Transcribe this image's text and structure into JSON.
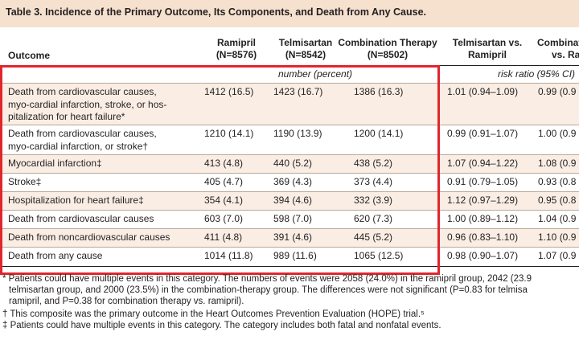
{
  "table": {
    "title": "Table 3. Incidence of the Primary Outcome, Its Components, and Death from Any Cause.",
    "headers": {
      "outcome": "Outcome",
      "ramipril": "Ramipril",
      "ramipril_n": "(N=8576)",
      "telmisartan": "Telmisartan",
      "telmisartan_n": "(N=8542)",
      "combination": "Combination Therapy",
      "combination_n": "(N=8502)",
      "telmi_vs_rami": "Telmisartan vs.",
      "telmi_vs_rami_2": "Ramipril",
      "combo_vs": "Combinatio",
      "combo_vs_2": "vs. Ra"
    },
    "subheaders": {
      "counts": "number (percent)",
      "ratio": "risk ratio (95% CI)"
    },
    "rows": [
      {
        "outcome": "Death from cardiovascular causes, myo-cardial infarction, stroke, or hos-pitalization for heart failure*",
        "ramipril": "1412 (16.5)",
        "telmisartan": "1423 (16.7)",
        "combination": "1386 (16.3)",
        "telmi_vs_rami": "1.01 (0.94–1.09)",
        "combo_vs": "0.99 (0.9"
      },
      {
        "outcome": "Death from cardiovascular causes, myo-cardial infarction, or stroke†",
        "ramipril": "1210 (14.1)",
        "telmisartan": "1190 (13.9)",
        "combination": "1200 (14.1)",
        "telmi_vs_rami": "0.99 (0.91–1.07)",
        "combo_vs": "1.00 (0.9"
      },
      {
        "outcome": "Myocardial infarction‡",
        "ramipril": "413 (4.8)",
        "telmisartan": "440 (5.2)",
        "combination": "438 (5.2)",
        "telmi_vs_rami": "1.07 (0.94–1.22)",
        "combo_vs": "1.08 (0.9"
      },
      {
        "outcome": "Stroke‡",
        "ramipril": "405 (4.7)",
        "telmisartan": "369 (4.3)",
        "combination": "373 (4.4)",
        "telmi_vs_rami": "0.91 (0.79–1.05)",
        "combo_vs": "0.93 (0.8"
      },
      {
        "outcome": "Hospitalization for heart failure‡",
        "ramipril": "354 (4.1)",
        "telmisartan": "394 (4.6)",
        "combination": "332 (3.9)",
        "telmi_vs_rami": "1.12 (0.97–1.29)",
        "combo_vs": "0.95 (0.8"
      },
      {
        "outcome": "Death from cardiovascular causes",
        "ramipril": "603 (7.0)",
        "telmisartan": "598 (7.0)",
        "combination": "620 (7.3)",
        "telmi_vs_rami": "1.00 (0.89–1.12)",
        "combo_vs": "1.04 (0.9"
      },
      {
        "outcome": "Death from noncardiovascular causes",
        "ramipril": "411 (4.8)",
        "telmisartan": "391 (4.6)",
        "combination": "445 (5.2)",
        "telmi_vs_rami": "0.96 (0.83–1.10)",
        "combo_vs": "1.10 (0.9"
      },
      {
        "outcome": "Death from any cause",
        "ramipril": "1014 (11.8)",
        "telmisartan": "989 (11.6)",
        "combination": "1065 (12.5)",
        "telmi_vs_rami": "0.98 (0.90–1.07)",
        "combo_vs": "1.07 (0.9"
      }
    ]
  },
  "footnotes": [
    "* Patients could have multiple events in this category. The numbers of events were 2058 (24.0%) in the ramipril group, 2042 (23.9",
    "telmisartan group, and 2000 (23.5%) in the combination-therapy group. The differences were not significant (P=0.83 for telmisa",
    "ramipril, and P=0.38 for combination therapy vs. ramipril).",
    "† This composite was the primary outcome in the Heart Outcomes Prevention Evaluation (HOPE) trial.⁵",
    "‡ Patients could have multiple events in this category. The category includes both fatal and nonfatal events."
  ],
  "colors": {
    "title_background": "#f6e1cf",
    "row_shade": "#faeee4",
    "highlight_border": "#e0262d"
  }
}
